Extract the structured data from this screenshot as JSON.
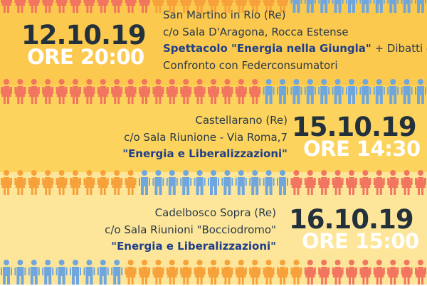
{
  "colors": {
    "band_top": "#fcc94f",
    "band_mid": "#fcd35d",
    "band_bottom": "#fde69a",
    "person_blue": "#6fa6dd",
    "person_pink": "#f1755f",
    "person_orange": "#f7a13a"
  },
  "events": [
    {
      "date": "12.10.19",
      "time": "ORE 20:00",
      "location": "San Martino in Rio (Re)",
      "venue": "c/o Sala D'Aragona,  Rocca Estense",
      "title": "Spettacolo \"Energia nella Giungla\"",
      "title_suffix": " + Dibatti e",
      "extra": "Confronto con Federconsumatori"
    },
    {
      "date": "15.10.19",
      "time": "ORE 14:30",
      "location": "Castellarano (Re)",
      "venue": "c/o Sala Riunione - Via Roma,7",
      "title": "\"Energia e Liberalizzazioni\""
    },
    {
      "date": "16.10.19",
      "time": "ORE 15:00",
      "location": "Cadelbosco Sopra (Re)",
      "venue": "c/o Sala Riunioni \"Bocciodromo\"",
      "title": "\"Energia e Liberalizzazioni\""
    }
  ],
  "people_rows": [
    {
      "icon": "person-icon",
      "pattern": "row0"
    },
    {
      "icon": "person-icon",
      "pattern": "row1"
    },
    {
      "icon": "person-icon",
      "pattern": "row2"
    },
    {
      "icon": "person-icon",
      "pattern": "row3"
    }
  ]
}
